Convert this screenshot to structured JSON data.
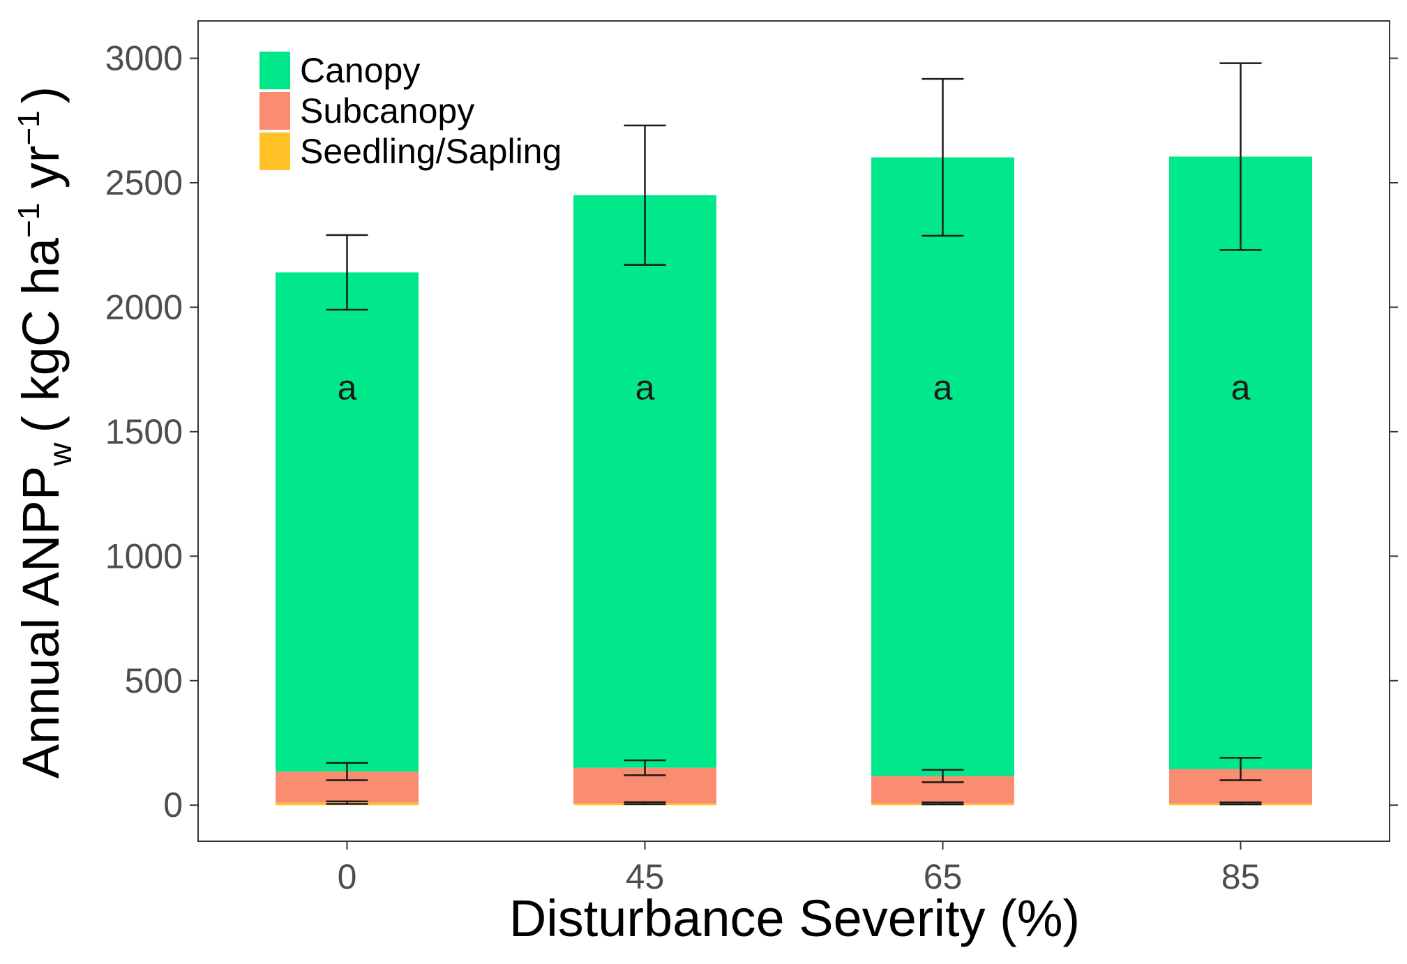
{
  "chart_data": {
    "type": "bar",
    "stacked": true,
    "categories": [
      "0",
      "45",
      "65",
      "85"
    ],
    "xlabel": "Disturbance Severity (%)",
    "ylabel": {
      "main": "Annual ANPP",
      "subscript": "w",
      "unit_open": "( kgC ha",
      "unit_exp1": "−1",
      "unit_mid": " yr",
      "unit_exp2": "−1",
      "unit_close": ")"
    },
    "ylim": [
      -145,
      3150
    ],
    "yticks": [
      0,
      500,
      1000,
      1500,
      2000,
      2500,
      3000
    ],
    "grid": false,
    "legend_position": "top-left",
    "series": [
      {
        "name": "Seedling/Sapling",
        "color": "#ffc125",
        "values": [
          10,
          8,
          7,
          7
        ],
        "error": [
          5,
          4,
          4,
          4
        ]
      },
      {
        "name": "Subcanopy",
        "color": "#fa8c72",
        "values": [
          125,
          142,
          110,
          138
        ],
        "error": [
          35,
          30,
          25,
          45
        ]
      },
      {
        "name": "Canopy",
        "color": "#00e88a",
        "values": [
          2005,
          2300,
          2485,
          2460
        ],
        "error": [
          150,
          280,
          315,
          375
        ]
      }
    ],
    "annotations": [
      "a",
      "a",
      "a",
      "a"
    ],
    "annotation_y": 1680
  }
}
